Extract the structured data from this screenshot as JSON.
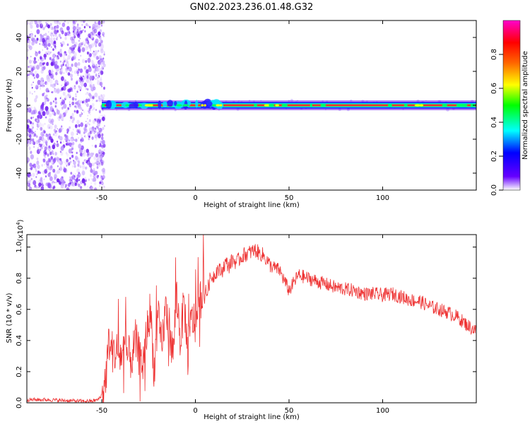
{
  "title": "GN02.2023.236.01.48.G32",
  "chart_data": [
    {
      "type": "heatmap",
      "xlabel": "Height of straight line (km)",
      "ylabel": "Frequency (Hz)",
      "xlim": [
        -90,
        150
      ],
      "ylim": [
        -50,
        50
      ],
      "xticks": [
        -50,
        0,
        50,
        100
      ],
      "yticks": [
        -40,
        -20,
        0,
        20,
        40
      ],
      "colorbar": {
        "label": "Normalized spectral amplitude",
        "range": [
          0,
          1
        ],
        "ticks": [
          "0.0",
          "0.2",
          "0.4",
          "0.6",
          "0.8"
        ]
      },
      "noise_region_x": [
        -90,
        -50
      ],
      "ridge": {
        "frequency": 0,
        "x_start": -50,
        "x_end": 150,
        "peak_amplitude": 0.9
      },
      "grid": false
    },
    {
      "type": "line",
      "xlabel": "Height of straight line (km)",
      "ylabel": "SNR (10 * v/v)",
      "multiplier_label": "(x10",
      "multiplier_exp": "4",
      "multiplier_close": ")",
      "xlim": [
        -90,
        150
      ],
      "ylim": [
        0.0,
        1.08
      ],
      "xticks": [
        -50,
        0,
        50,
        100
      ],
      "yticks": [
        "0.0",
        "0.2",
        "0.4",
        "0.6",
        "0.8",
        "1.0"
      ],
      "color": "#ee3333",
      "series": [
        {
          "x": [
            -90,
            -80,
            -70,
            -60,
            -55,
            -52,
            -50,
            -48,
            -46,
            -44,
            -42,
            -40,
            -38,
            -36,
            -34,
            -32,
            -30,
            -28,
            -26,
            -24,
            -22,
            -20,
            -18,
            -16,
            -14,
            -12,
            -10,
            -8,
            -6,
            -4,
            -2,
            0,
            2,
            4,
            6,
            8,
            10,
            12,
            14,
            16,
            18,
            20,
            22,
            24,
            26,
            28,
            30,
            32,
            34,
            36,
            38,
            40,
            45,
            50,
            55,
            60,
            65,
            70,
            75,
            80,
            85,
            90,
            95,
            100,
            105,
            110,
            115,
            120,
            125,
            130,
            135,
            140,
            145,
            150
          ],
          "values": [
            0.02,
            0.02,
            0.015,
            0.01,
            0.012,
            0.02,
            0.05,
            0.15,
            0.4,
            0.32,
            0.33,
            0.3,
            0.35,
            0.3,
            0.28,
            0.4,
            0.3,
            0.25,
            0.45,
            0.6,
            0.2,
            0.55,
            0.35,
            0.6,
            0.5,
            0.3,
            0.7,
            0.4,
            0.65,
            0.3,
            0.55,
            0.5,
            0.62,
            0.75,
            0.7,
            0.8,
            0.82,
            0.86,
            0.84,
            0.9,
            0.88,
            0.92,
            0.9,
            0.93,
            0.95,
            0.96,
            0.97,
            0.98,
            0.96,
            0.95,
            0.92,
            0.88,
            0.85,
            0.72,
            0.82,
            0.8,
            0.78,
            0.76,
            0.74,
            0.73,
            0.72,
            0.7,
            0.7,
            0.69,
            0.7,
            0.68,
            0.66,
            0.65,
            0.62,
            0.6,
            0.58,
            0.55,
            0.5,
            0.46
          ]
        }
      ]
    }
  ]
}
